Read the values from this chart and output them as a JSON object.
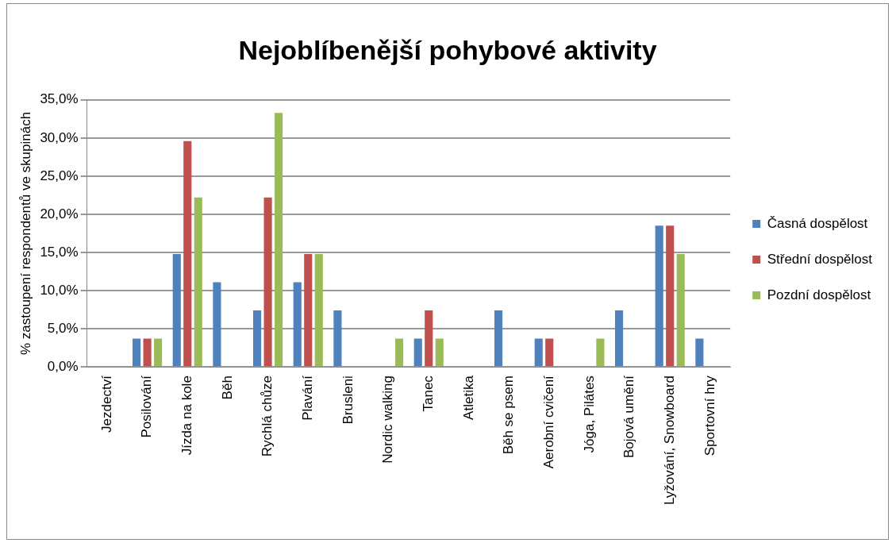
{
  "chart_data": {
    "type": "bar",
    "title": "Nejoblíbenější pohybové aktivity",
    "ylabel": "% zastoupení respondentů ve skupinách",
    "categories": [
      "Jezdectví",
      "Posilování",
      "Jízda na kole",
      "Běh",
      "Rychlá chůze",
      "Plavání",
      "Brusleni",
      "Nordic walking",
      "Tanec",
      "Atletika",
      "Běh se psem",
      "Aerobní cvičení",
      "Jóga, Pilátes",
      "Bojová umění",
      "Lyžování, Snowboard",
      "Sportovní hry"
    ],
    "series": [
      {
        "name": "Časná dospělost",
        "color": "#4f81bd",
        "values": [
          0,
          3.7,
          14.8,
          11.1,
          7.4,
          11.1,
          7.4,
          0,
          3.7,
          0,
          7.4,
          3.7,
          0,
          7.4,
          18.5,
          3.7
        ]
      },
      {
        "name": "Střední dospělost",
        "color": "#c0504d",
        "values": [
          0,
          3.7,
          29.6,
          0,
          22.2,
          14.8,
          0,
          0,
          7.4,
          0,
          0,
          3.7,
          0,
          0,
          18.5,
          0
        ]
      },
      {
        "name": "Pozdní dospělost",
        "color": "#9bbb59",
        "values": [
          0,
          3.7,
          22.2,
          0,
          33.3,
          14.8,
          0,
          3.7,
          3.7,
          0,
          0,
          0,
          3.7,
          0,
          14.8,
          0
        ]
      }
    ],
    "ylim": [
      0,
      35
    ],
    "yticks": [
      {
        "value": 0,
        "label": "0,0%"
      },
      {
        "value": 5,
        "label": "5,0%"
      },
      {
        "value": 10,
        "label": "10,0%"
      },
      {
        "value": 15,
        "label": "15,0%"
      },
      {
        "value": 20,
        "label": "20,0%"
      },
      {
        "value": 25,
        "label": "25,0%"
      },
      {
        "value": 30,
        "label": "30,0%"
      },
      {
        "value": 35,
        "label": "35,0%"
      }
    ],
    "grid": "y",
    "legend": "right"
  }
}
